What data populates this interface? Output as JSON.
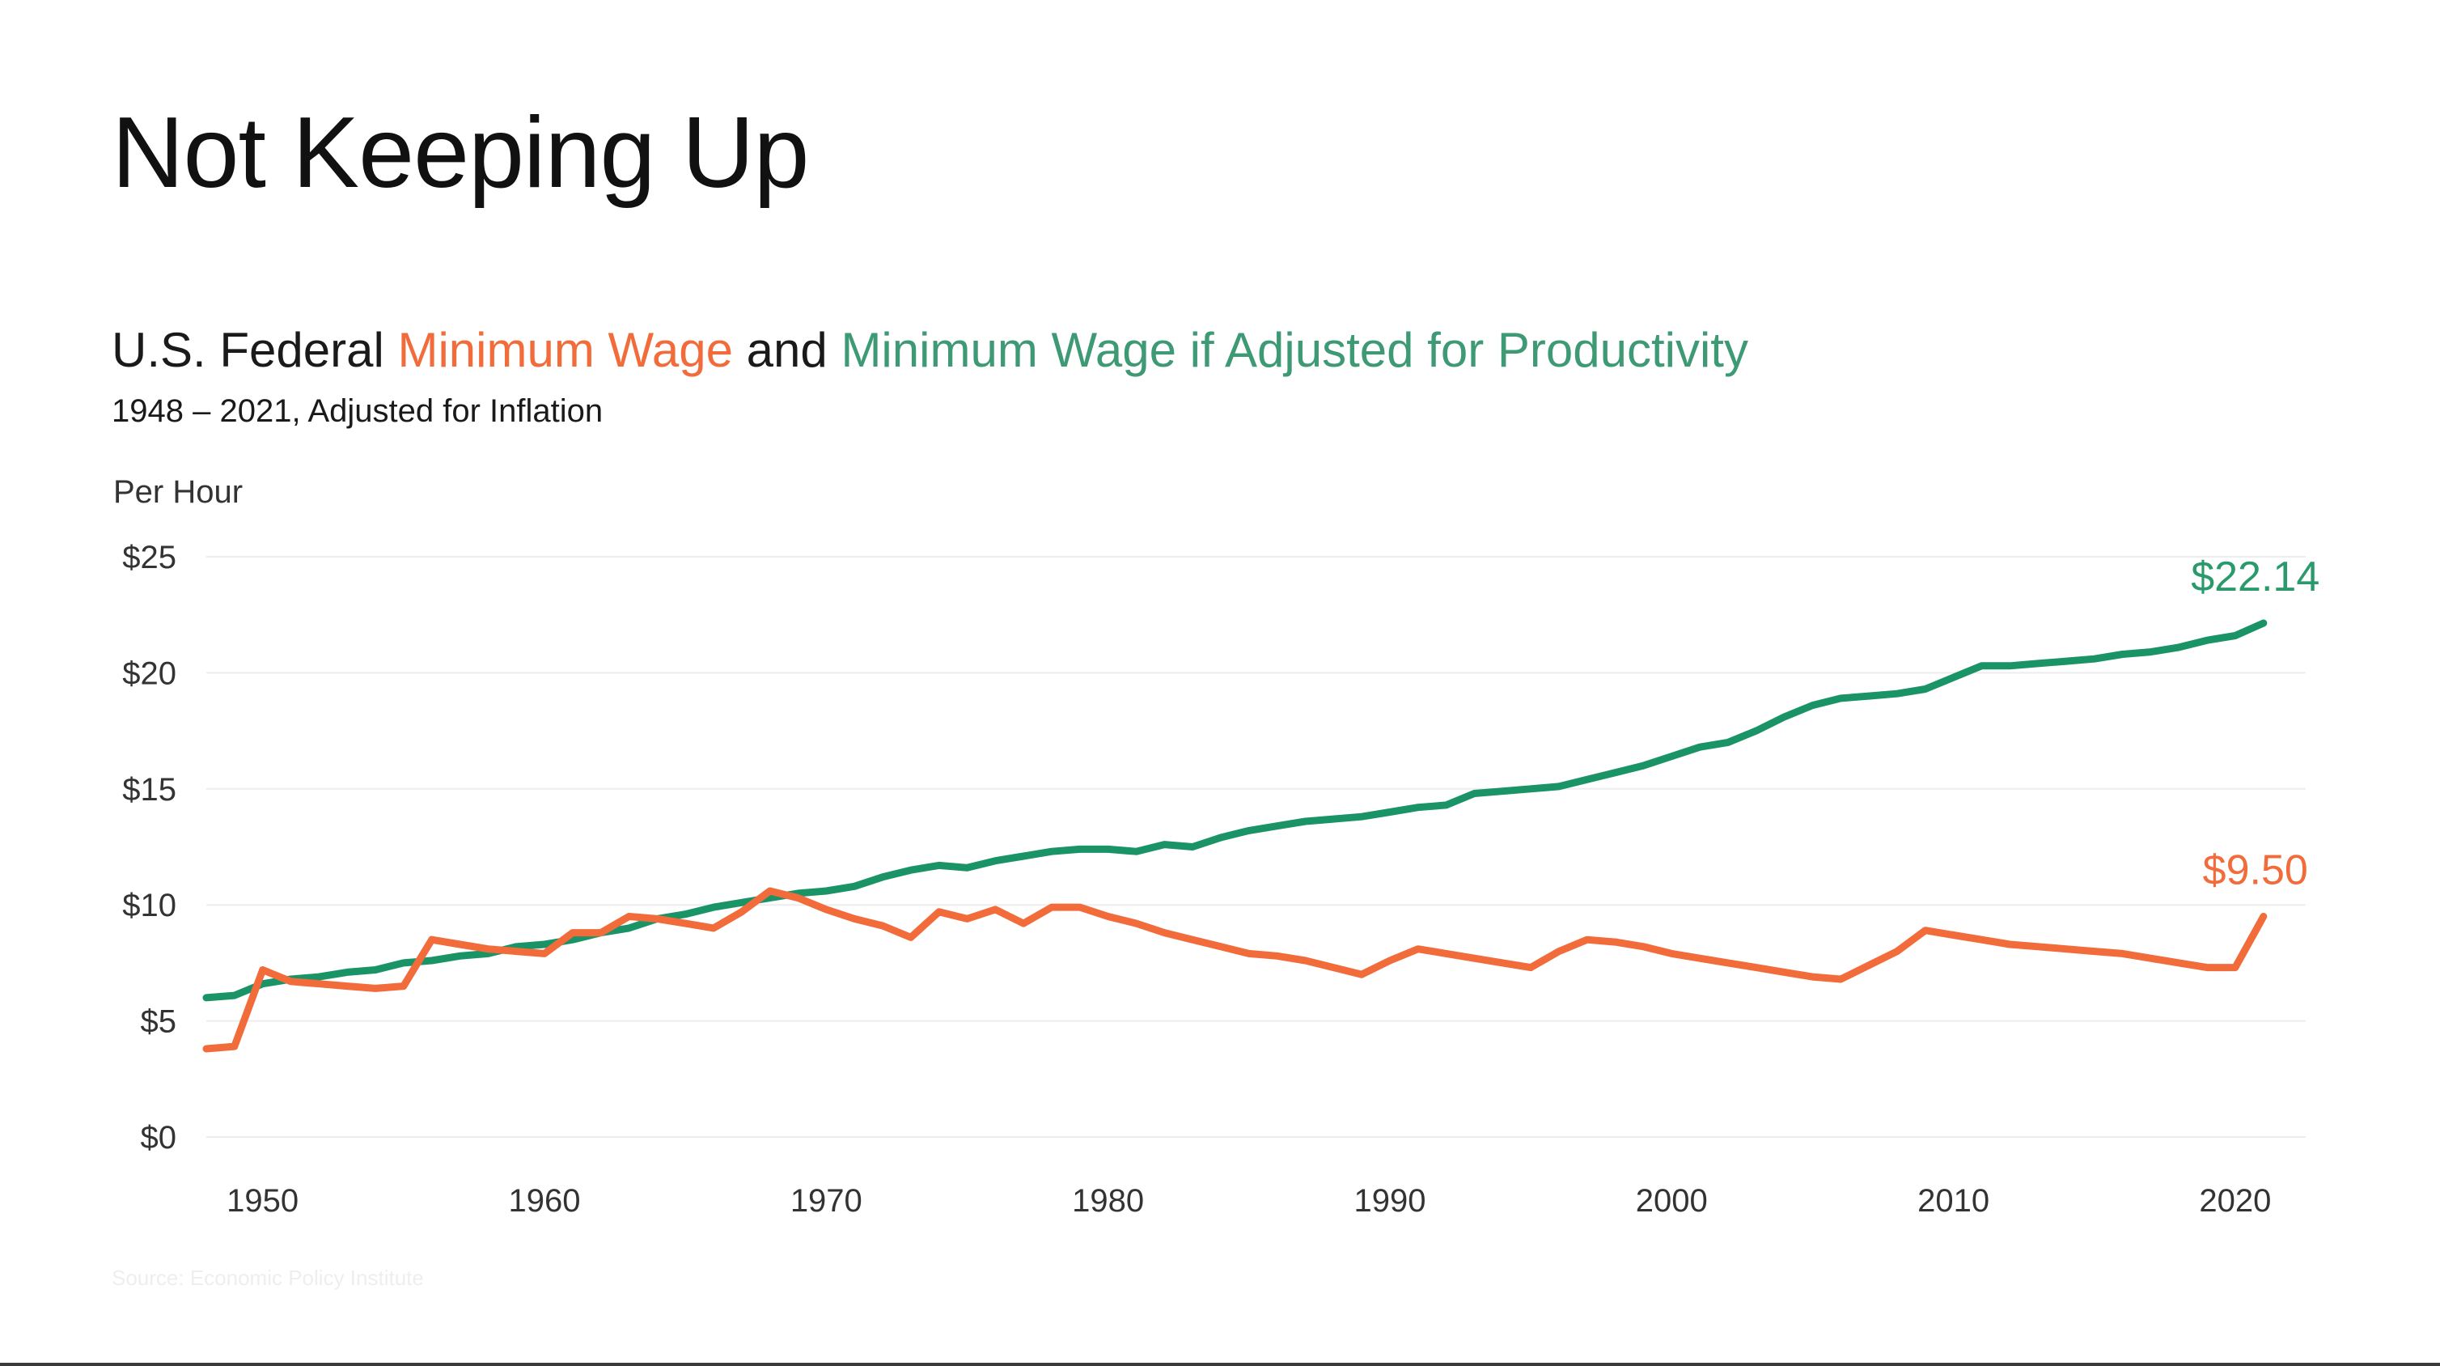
{
  "slide": {
    "title": "Not Keeping Up",
    "source": "Source: Economic Policy Institute"
  },
  "colors": {
    "minimum_wage": "#f26b3a",
    "productivity": "#1a9466",
    "productivity_text": "#3d9a74",
    "grid": "#ededed",
    "text": "#333333"
  },
  "chart_data": {
    "type": "line",
    "title_parts": [
      {
        "text": "U.S. Federal ",
        "series": ""
      },
      {
        "text": "Minimum Wage",
        "series": "minimum_wage"
      },
      {
        "text": " and ",
        "series": ""
      },
      {
        "text": "Minimum Wage if Adjusted for Productivity",
        "series": "productivity"
      }
    ],
    "subtitle": "1948 – 2021, Adjusted for Inflation",
    "ylabel": "Per Hour",
    "xlim": [
      1948,
      2022
    ],
    "ylim": [
      0,
      25
    ],
    "y_ticks": [
      {
        "value": 25,
        "label": "$25"
      },
      {
        "value": 20,
        "label": "$20"
      },
      {
        "value": 15,
        "label": "$15"
      },
      {
        "value": 10,
        "label": "$10"
      },
      {
        "value": 5,
        "label": "$5"
      },
      {
        "value": 0,
        "label": "$0"
      }
    ],
    "x_ticks": [
      {
        "value": 1950,
        "label": "1950"
      },
      {
        "value": 1960,
        "label": "1960"
      },
      {
        "value": 1970,
        "label": "1970"
      },
      {
        "value": 1980,
        "label": "1980"
      },
      {
        "value": 1990,
        "label": "1990"
      },
      {
        "value": 2000,
        "label": "2000"
      },
      {
        "value": 2010,
        "label": "2010"
      },
      {
        "value": 2020,
        "label": "2020"
      }
    ],
    "grid": "horizontal",
    "legend": "none",
    "series": [
      {
        "key": "productivity",
        "color": "#1a9466",
        "end_label": "$22.14",
        "points": [
          [
            1948,
            6.0
          ],
          [
            1949,
            6.1
          ],
          [
            1950,
            6.6
          ],
          [
            1951,
            6.8
          ],
          [
            1952,
            6.9
          ],
          [
            1953,
            7.1
          ],
          [
            1954,
            7.2
          ],
          [
            1955,
            7.5
          ],
          [
            1956,
            7.6
          ],
          [
            1957,
            7.8
          ],
          [
            1958,
            7.9
          ],
          [
            1959,
            8.2
          ],
          [
            1960,
            8.3
          ],
          [
            1961,
            8.5
          ],
          [
            1962,
            8.8
          ],
          [
            1963,
            9.0
          ],
          [
            1964,
            9.4
          ],
          [
            1965,
            9.6
          ],
          [
            1966,
            9.9
          ],
          [
            1967,
            10.1
          ],
          [
            1968,
            10.3
          ],
          [
            1969,
            10.5
          ],
          [
            1970,
            10.6
          ],
          [
            1971,
            10.8
          ],
          [
            1972,
            11.2
          ],
          [
            1973,
            11.5
          ],
          [
            1974,
            11.7
          ],
          [
            1975,
            11.6
          ],
          [
            1976,
            11.9
          ],
          [
            1977,
            12.1
          ],
          [
            1978,
            12.3
          ],
          [
            1979,
            12.4
          ],
          [
            1980,
            12.4
          ],
          [
            1981,
            12.3
          ],
          [
            1982,
            12.6
          ],
          [
            1983,
            12.5
          ],
          [
            1984,
            12.9
          ],
          [
            1985,
            13.2
          ],
          [
            1986,
            13.4
          ],
          [
            1987,
            13.6
          ],
          [
            1988,
            13.7
          ],
          [
            1989,
            13.8
          ],
          [
            1990,
            14.0
          ],
          [
            1991,
            14.2
          ],
          [
            1992,
            14.3
          ],
          [
            1993,
            14.8
          ],
          [
            1994,
            14.9
          ],
          [
            1995,
            15.0
          ],
          [
            1996,
            15.1
          ],
          [
            1997,
            15.4
          ],
          [
            1998,
            15.7
          ],
          [
            1999,
            16.0
          ],
          [
            2000,
            16.4
          ],
          [
            2001,
            16.8
          ],
          [
            2002,
            17.0
          ],
          [
            2003,
            17.5
          ],
          [
            2004,
            18.1
          ],
          [
            2005,
            18.6
          ],
          [
            2006,
            18.9
          ],
          [
            2007,
            19.0
          ],
          [
            2008,
            19.1
          ],
          [
            2009,
            19.3
          ],
          [
            2010,
            19.8
          ],
          [
            2011,
            20.3
          ],
          [
            2012,
            20.3
          ],
          [
            2013,
            20.4
          ],
          [
            2014,
            20.5
          ],
          [
            2015,
            20.6
          ],
          [
            2016,
            20.8
          ],
          [
            2017,
            20.9
          ],
          [
            2018,
            21.1
          ],
          [
            2019,
            21.4
          ],
          [
            2020,
            21.6
          ],
          [
            2021,
            22.14
          ]
        ]
      },
      {
        "key": "minimum_wage",
        "color": "#f26b3a",
        "end_label": "$9.50",
        "points": [
          [
            1948,
            3.8
          ],
          [
            1949,
            3.9
          ],
          [
            1950,
            7.2
          ],
          [
            1951,
            6.7
          ],
          [
            1952,
            6.6
          ],
          [
            1953,
            6.5
          ],
          [
            1954,
            6.4
          ],
          [
            1955,
            6.5
          ],
          [
            1956,
            8.5
          ],
          [
            1957,
            8.3
          ],
          [
            1958,
            8.1
          ],
          [
            1959,
            8.0
          ],
          [
            1960,
            7.9
          ],
          [
            1961,
            8.8
          ],
          [
            1962,
            8.8
          ],
          [
            1963,
            9.5
          ],
          [
            1964,
            9.4
          ],
          [
            1965,
            9.2
          ],
          [
            1966,
            9.0
          ],
          [
            1967,
            9.7
          ],
          [
            1968,
            10.6
          ],
          [
            1969,
            10.3
          ],
          [
            1970,
            9.8
          ],
          [
            1971,
            9.4
          ],
          [
            1972,
            9.1
          ],
          [
            1973,
            8.6
          ],
          [
            1974,
            9.7
          ],
          [
            1975,
            9.4
          ],
          [
            1976,
            9.8
          ],
          [
            1977,
            9.2
          ],
          [
            1978,
            9.9
          ],
          [
            1979,
            9.9
          ],
          [
            1980,
            9.5
          ],
          [
            1981,
            9.2
          ],
          [
            1982,
            8.8
          ],
          [
            1983,
            8.5
          ],
          [
            1984,
            8.2
          ],
          [
            1985,
            7.9
          ],
          [
            1986,
            7.8
          ],
          [
            1987,
            7.6
          ],
          [
            1988,
            7.3
          ],
          [
            1989,
            7.0
          ],
          [
            1990,
            7.6
          ],
          [
            1991,
            8.1
          ],
          [
            1992,
            7.9
          ],
          [
            1993,
            7.7
          ],
          [
            1994,
            7.5
          ],
          [
            1995,
            7.3
          ],
          [
            1996,
            8.0
          ],
          [
            1997,
            8.5
          ],
          [
            1998,
            8.4
          ],
          [
            1999,
            8.2
          ],
          [
            2000,
            7.9
          ],
          [
            2001,
            7.7
          ],
          [
            2002,
            7.5
          ],
          [
            2003,
            7.3
          ],
          [
            2004,
            7.1
          ],
          [
            2005,
            6.9
          ],
          [
            2006,
            6.8
          ],
          [
            2007,
            7.4
          ],
          [
            2008,
            8.0
          ],
          [
            2009,
            8.9
          ],
          [
            2010,
            8.7
          ],
          [
            2011,
            8.5
          ],
          [
            2012,
            8.3
          ],
          [
            2013,
            8.2
          ],
          [
            2014,
            8.1
          ],
          [
            2015,
            8.0
          ],
          [
            2016,
            7.9
          ],
          [
            2017,
            7.7
          ],
          [
            2018,
            7.5
          ],
          [
            2019,
            7.3
          ],
          [
            2020,
            7.3
          ],
          [
            2021,
            9.5
          ]
        ]
      }
    ]
  }
}
